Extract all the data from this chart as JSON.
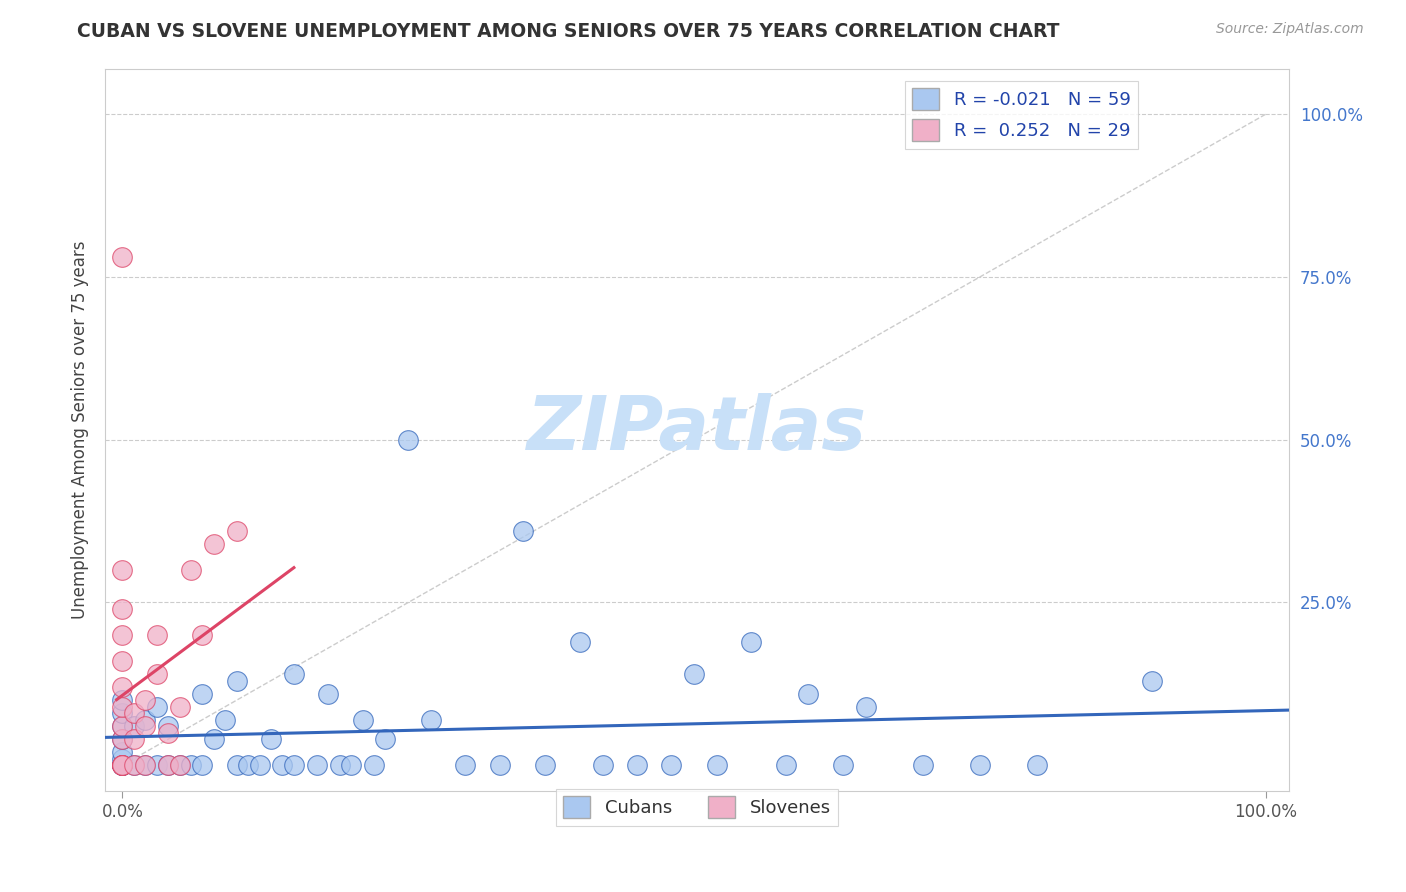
{
  "title": "CUBAN VS SLOVENE UNEMPLOYMENT AMONG SENIORS OVER 75 YEARS CORRELATION CHART",
  "source": "Source: ZipAtlas.com",
  "ylabel": "Unemployment Among Seniors over 75 years",
  "xlim": [
    0.0,
    1.0
  ],
  "ylim": [
    -0.02,
    1.05
  ],
  "legend_r_cubans": "-0.021",
  "legend_n_cubans": "59",
  "legend_r_slovenes": "0.252",
  "legend_n_slovenes": "29",
  "cubans_color": "#aac8f0",
  "slovenes_color": "#f0b0c8",
  "trend_cubans_color": "#3366bb",
  "trend_slovenes_color": "#dd4466",
  "watermark_color": "#c8e0f8",
  "cubans_x": [
    0.0,
    0.0,
    0.0,
    0.0,
    0.0,
    0.0,
    0.0,
    0.0,
    0.0,
    0.01,
    0.01,
    0.02,
    0.02,
    0.03,
    0.03,
    0.04,
    0.04,
    0.05,
    0.06,
    0.07,
    0.07,
    0.08,
    0.09,
    0.1,
    0.1,
    0.11,
    0.12,
    0.13,
    0.14,
    0.15,
    0.15,
    0.17,
    0.18,
    0.19,
    0.2,
    0.21,
    0.22,
    0.23,
    0.25,
    0.27,
    0.3,
    0.33,
    0.35,
    0.37,
    0.4,
    0.42,
    0.45,
    0.48,
    0.5,
    0.52,
    0.55,
    0.58,
    0.6,
    0.63,
    0.65,
    0.7,
    0.75,
    0.8,
    0.9
  ],
  "cubans_y": [
    0.0,
    0.0,
    0.0,
    0.01,
    0.02,
    0.04,
    0.06,
    0.08,
    0.1,
    0.0,
    0.06,
    0.0,
    0.07,
    0.0,
    0.09,
    0.0,
    0.06,
    0.0,
    0.0,
    0.0,
    0.11,
    0.04,
    0.07,
    0.0,
    0.13,
    0.0,
    0.0,
    0.04,
    0.0,
    0.0,
    0.14,
    0.0,
    0.11,
    0.0,
    0.0,
    0.07,
    0.0,
    0.04,
    0.5,
    0.07,
    0.0,
    0.0,
    0.36,
    0.0,
    0.19,
    0.0,
    0.0,
    0.0,
    0.14,
    0.0,
    0.19,
    0.0,
    0.11,
    0.0,
    0.09,
    0.0,
    0.0,
    0.0,
    0.13
  ],
  "slovenes_x": [
    0.0,
    0.0,
    0.0,
    0.0,
    0.0,
    0.0,
    0.0,
    0.0,
    0.0,
    0.0,
    0.0,
    0.0,
    0.0,
    0.01,
    0.01,
    0.01,
    0.02,
    0.02,
    0.02,
    0.03,
    0.03,
    0.04,
    0.04,
    0.05,
    0.05,
    0.06,
    0.07,
    0.08,
    0.1
  ],
  "slovenes_y": [
    0.0,
    0.0,
    0.0,
    0.0,
    0.04,
    0.06,
    0.09,
    0.12,
    0.16,
    0.2,
    0.24,
    0.3,
    0.78,
    0.0,
    0.04,
    0.08,
    0.0,
    0.06,
    0.1,
    0.14,
    0.2,
    0.0,
    0.05,
    0.0,
    0.09,
    0.3,
    0.2,
    0.34,
    0.36
  ]
}
